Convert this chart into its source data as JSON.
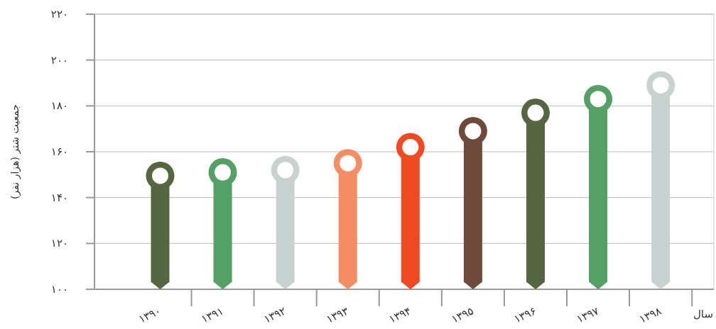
{
  "chart_data": {
    "type": "lollipop",
    "xlabel": "سال",
    "ylabel": "جمعیت شتر (هزار نفر)",
    "categories": [
      "۱۳۹۰",
      "۱۳۹۱",
      "۱۳۹۲",
      "۱۳۹۳",
      "۱۳۹۴",
      "۱۳۹۵",
      "۱۳۹۶",
      "۱۳۹۷",
      "۱۳۹۸"
    ],
    "values": [
      149.5,
      151,
      152,
      155,
      162,
      169,
      177,
      183,
      189
    ],
    "colors": [
      "#556640",
      "#55a064",
      "#c8d2d0",
      "#f48c64",
      "#f04a22",
      "#6d4a3c",
      "#556640",
      "#55a064",
      "#c8d2d0"
    ],
    "ylim": [
      100,
      220
    ],
    "yticks": [
      {
        "value": 100,
        "label": "۱۰۰"
      },
      {
        "value": 120,
        "label": "۱۲۰"
      },
      {
        "value": 140,
        "label": "۱۴۰"
      },
      {
        "value": 160,
        "label": "۱۶۰"
      },
      {
        "value": 180,
        "label": "۱۸۰"
      },
      {
        "value": 200,
        "label": "۲۰۰"
      },
      {
        "value": 220,
        "label": "۲۲۰"
      }
    ],
    "grid": "y"
  }
}
